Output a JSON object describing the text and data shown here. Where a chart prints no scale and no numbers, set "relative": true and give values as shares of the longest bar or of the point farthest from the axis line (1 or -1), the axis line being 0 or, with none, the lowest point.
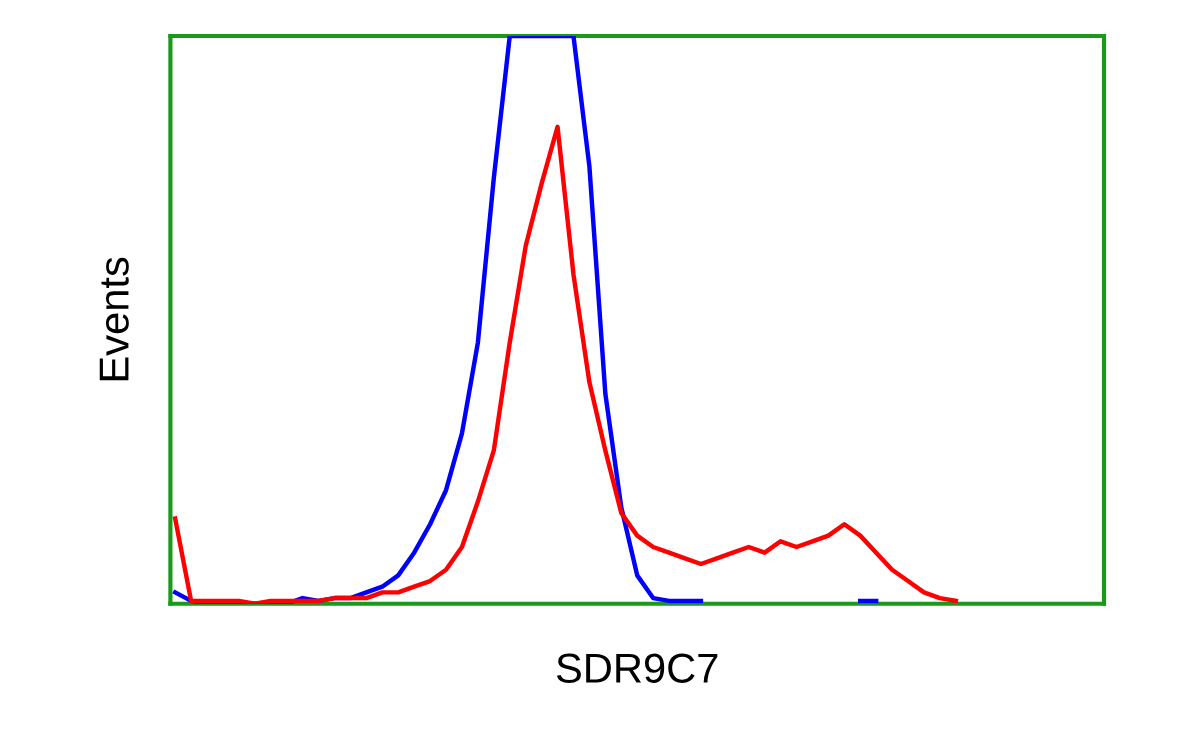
{
  "chart_data": {
    "type": "line",
    "xlabel": "SDR9C7",
    "ylabel": "Events",
    "relative": true,
    "categories": [
      null,
      null,
      null,
      null,
      null,
      null,
      null,
      null,
      null,
      null,
      null,
      null,
      null,
      null,
      null,
      null,
      null,
      null,
      null,
      null,
      null,
      null,
      null,
      null,
      null,
      null,
      null,
      null,
      null,
      null,
      null,
      null,
      null,
      null,
      null,
      null,
      null,
      null,
      null,
      null,
      null,
      null,
      null,
      null,
      null,
      null,
      null,
      null,
      null,
      null,
      null,
      null,
      null,
      null,
      null,
      null,
      null,
      null,
      null
    ],
    "series": [
      {
        "color": "#0000ff",
        "values": [
          0.02,
          0.005,
          0,
          0,
          0,
          0,
          0,
          0,
          0.01,
          0.005,
          0.01,
          0.01,
          0.02,
          0.03,
          0.05,
          0.09,
          0.14,
          0.2,
          0.3,
          0.46,
          0.75,
          1,
          1,
          1,
          1,
          1,
          0.77,
          0.37,
          0.17,
          0.05,
          0.01,
          0.005,
          0.005,
          0.005,
          null,
          null,
          null,
          null,
          null,
          null,
          null,
          null,
          null,
          0.005,
          0.005,
          null,
          null,
          null,
          null,
          null,
          null,
          null,
          null,
          null,
          null,
          null,
          null,
          null,
          null
        ]
      },
      {
        "color": "#ff0000",
        "values": [
          0.15,
          0.005,
          0.005,
          0.005,
          0.005,
          0,
          0.005,
          0.005,
          0.005,
          0.005,
          0.01,
          0.01,
          0.01,
          0.02,
          0.02,
          0.03,
          0.04,
          0.06,
          0.1,
          0.18,
          0.27,
          0.46,
          0.63,
          0.74,
          0.84,
          0.58,
          0.39,
          0.27,
          0.16,
          0.12,
          0.1,
          0.09,
          0.08,
          0.07,
          0.08,
          0.09,
          0.1,
          0.09,
          0.11,
          0.1,
          0.11,
          0.12,
          0.14,
          0.12,
          0.09,
          0.06,
          0.04,
          0.02,
          0.01,
          0.005,
          null,
          null,
          null,
          null,
          null,
          null,
          null,
          null,
          null
        ]
      }
    ]
  }
}
